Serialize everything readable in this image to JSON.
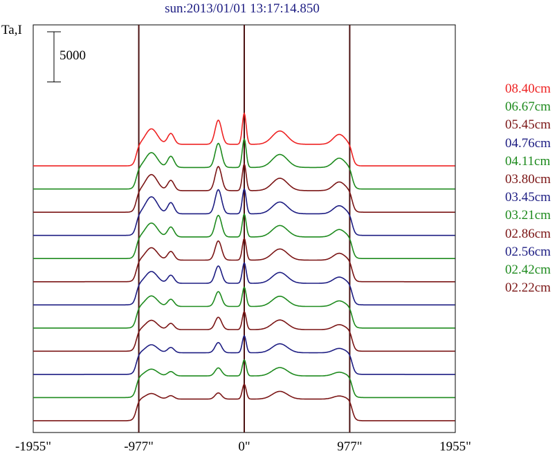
{
  "title": "sun:2013/01/01 13:17:14.850",
  "chart_data": {
    "type": "line",
    "title": "sun:2013/01/01 13:17:14.850",
    "ylabel": "Ta,I",
    "xlabel": "",
    "xlim": [
      -1955,
      1955
    ],
    "x_ticks": [
      -1955,
      -977,
      0,
      977,
      1955
    ],
    "x_tick_labels": [
      "-1955\"",
      "-977\"",
      "0\"",
      "977\"",
      "1955\""
    ],
    "vertical_reference_lines": [
      -977,
      0,
      977
    ],
    "scale_bar": {
      "label": "5000",
      "value": 5000
    },
    "layout": "stacked-offset",
    "series": [
      {
        "name": "08.40cm",
        "color": "#ee2222",
        "baseline": 47500,
        "peaks": [
          0.5,
          0.35,
          0.78,
          1.0,
          0.43,
          0.32
        ]
      },
      {
        "name": "06.67cm",
        "color": "#1d8a1d",
        "baseline": 43000,
        "peaks": [
          0.48,
          0.36,
          0.78,
          0.92,
          0.42,
          0.3
        ]
      },
      {
        "name": "05.45cm",
        "color": "#7a1414",
        "baseline": 38500,
        "peaks": [
          0.52,
          0.33,
          0.78,
          0.86,
          0.4,
          0.28
        ]
      },
      {
        "name": "04.76cm",
        "color": "#1c1c82",
        "baseline": 34000,
        "peaks": [
          0.55,
          0.36,
          0.78,
          0.8,
          0.38,
          0.26
        ]
      },
      {
        "name": "04.11cm",
        "color": "#1d8a1d",
        "baseline": 29500,
        "peaks": [
          0.45,
          0.32,
          0.7,
          0.74,
          0.37,
          0.24
        ]
      },
      {
        "name": "03.80cm",
        "color": "#7a1414",
        "baseline": 25000,
        "peaks": [
          0.4,
          0.28,
          0.62,
          0.7,
          0.36,
          0.22
        ]
      },
      {
        "name": "03.45cm",
        "color": "#1c1c82",
        "baseline": 20500,
        "peaks": [
          0.38,
          0.26,
          0.56,
          0.66,
          0.35,
          0.2
        ]
      },
      {
        "name": "03.21cm",
        "color": "#1d8a1d",
        "baseline": 16000,
        "peaks": [
          0.34,
          0.23,
          0.48,
          0.62,
          0.33,
          0.18
        ]
      },
      {
        "name": "02.86cm",
        "color": "#7a1414",
        "baseline": 11500,
        "peaks": [
          0.3,
          0.2,
          0.4,
          0.58,
          0.31,
          0.16
        ]
      },
      {
        "name": "02.56cm",
        "color": "#1c1c82",
        "baseline": 7000,
        "peaks": [
          0.26,
          0.17,
          0.33,
          0.55,
          0.29,
          0.14
        ]
      },
      {
        "name": "02.42cm",
        "color": "#1d8a1d",
        "baseline": 2500,
        "peaks": [
          0.22,
          0.14,
          0.26,
          0.52,
          0.27,
          0.12
        ]
      },
      {
        "name": "02.22cm",
        "color": "#7a1414",
        "baseline": -2000,
        "peaks": [
          0.18,
          0.11,
          0.2,
          0.48,
          0.25,
          0.1
        ]
      }
    ]
  }
}
